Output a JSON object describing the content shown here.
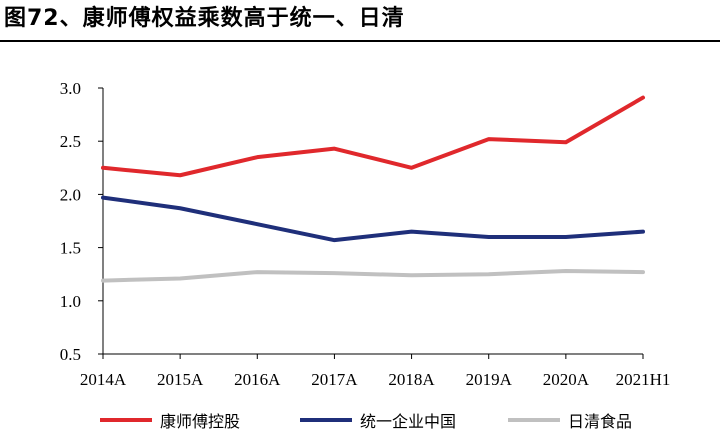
{
  "figure_title": "图72、康师傅权益乘数高于统一、日清",
  "chart_data": {
    "type": "line",
    "categories": [
      "2014A",
      "2015A",
      "2016A",
      "2017A",
      "2018A",
      "2019A",
      "2020A",
      "2021H1"
    ],
    "ylim": [
      0.5,
      3.0
    ],
    "yticks": [
      "0.5",
      "1.0",
      "1.5",
      "2.0",
      "2.5",
      "3.0"
    ],
    "grid": false,
    "legend_position": "bottom",
    "series": [
      {
        "name": "康师傅控股",
        "color": "#e0282c",
        "values": [
          2.25,
          2.18,
          2.35,
          2.43,
          2.25,
          2.52,
          2.49,
          2.91
        ]
      },
      {
        "name": "统一企业中国",
        "color": "#1f2f7a",
        "values": [
          1.97,
          1.87,
          1.72,
          1.57,
          1.65,
          1.6,
          1.6,
          1.65
        ]
      },
      {
        "name": "日清食品",
        "color": "#c0c0c0",
        "values": [
          1.19,
          1.21,
          1.27,
          1.26,
          1.24,
          1.25,
          1.28,
          1.27
        ]
      }
    ]
  }
}
